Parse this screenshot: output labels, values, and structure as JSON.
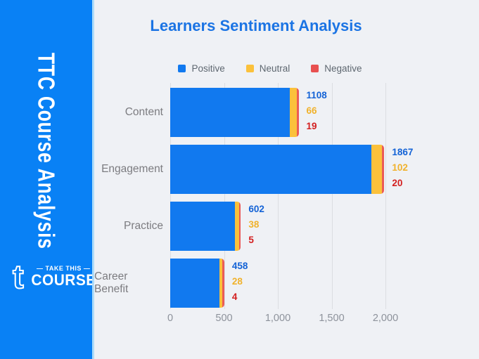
{
  "colors": {
    "page_background": "#EFF1F5",
    "sidebar_background": "#0981F5",
    "sidebar_divider": "#AEDCF9",
    "title_blue": "#1B74E4",
    "gridline": "#DCDEE2"
  },
  "sidebar": {
    "vertical_title": "TTC Course Analysis",
    "logo": {
      "glyph": "t",
      "tagline": "— TAKE THIS —",
      "brand": "COURSE"
    }
  },
  "header": {
    "title": "Learners Sentiment Analysis"
  },
  "legend": [
    {
      "label": "Positive",
      "color": "#1179EF"
    },
    {
      "label": "Neutral",
      "color": "#FBC13B"
    },
    {
      "label": "Negative",
      "color": "#E85050"
    }
  ],
  "chart_data": {
    "type": "bar",
    "orientation": "horizontal",
    "stacked": true,
    "title": "Learners Sentiment Analysis",
    "categories": [
      "Content",
      "Engagement",
      "Practice",
      "Career Benefit"
    ],
    "series": [
      {
        "name": "Positive",
        "color": "#1179EF",
        "label_color": "#1463D6",
        "values": [
          1108,
          1867,
          602,
          458
        ]
      },
      {
        "name": "Neutral",
        "color": "#FBC13B",
        "label_color": "#F0B22C",
        "values": [
          66,
          102,
          38,
          28
        ]
      },
      {
        "name": "Negative",
        "color": "#EB5B56",
        "label_color": "#D31F1F",
        "values": [
          19,
          20,
          5,
          4
        ]
      }
    ],
    "xlim": [
      0,
      2500
    ],
    "x_ticks": [
      "0",
      "500",
      "1,000",
      "1,500",
      "2,000"
    ],
    "x_tick_values": [
      0,
      500,
      1000,
      1500,
      2000
    ],
    "grid": true,
    "legend_position": "top",
    "value_labels": "end-of-bar"
  }
}
